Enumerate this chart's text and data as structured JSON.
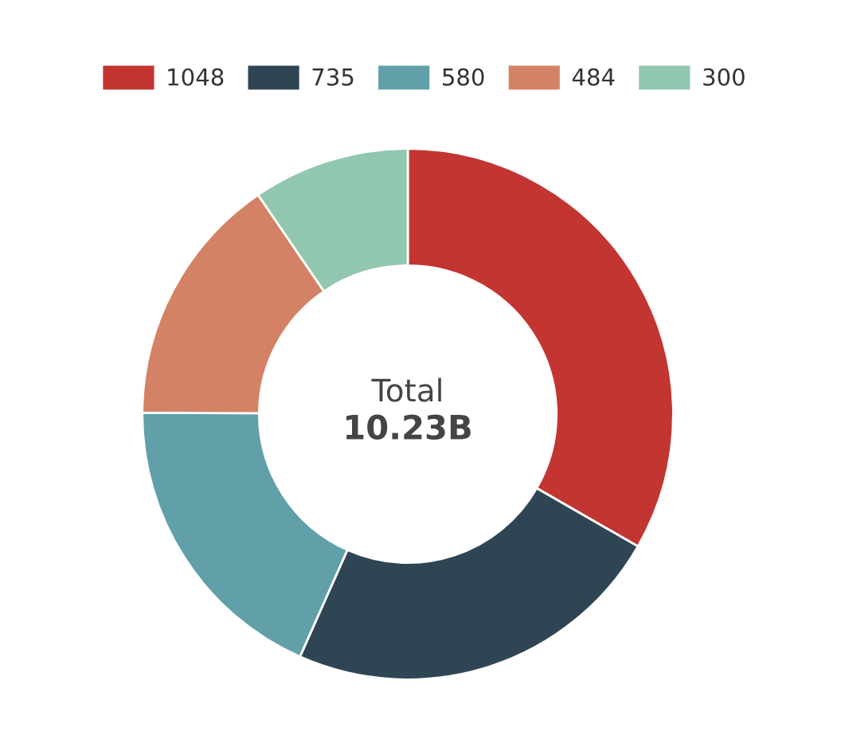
{
  "chart_data": {
    "type": "donut",
    "categories": [
      "1048",
      "735",
      "580",
      "484",
      "300"
    ],
    "values": [
      1048,
      735,
      580,
      484,
      300
    ],
    "colors": [
      "#c23531",
      "#2f4554",
      "#61a0a8",
      "#d48265",
      "#91c7ae"
    ],
    "annotations": [
      "Total",
      "10.23B"
    ],
    "legend": "top"
  }
}
